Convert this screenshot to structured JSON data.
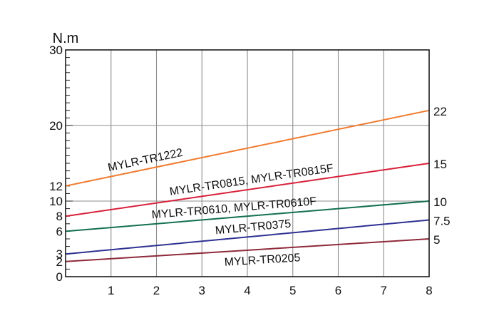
{
  "chart_data": {
    "type": "line",
    "ylabel": "N.m",
    "xlim": [
      0,
      8
    ],
    "ylim": [
      0,
      30
    ],
    "x_ticks": [
      "1",
      "2",
      "3",
      "4",
      "5",
      "6",
      "7",
      "8"
    ],
    "y_tick_labels": [
      {
        "value": 0,
        "label": "0"
      },
      {
        "value": 2,
        "label": "2"
      },
      {
        "value": 3,
        "label": "3"
      },
      {
        "value": 6,
        "label": "6"
      },
      {
        "value": 8,
        "label": "8"
      },
      {
        "value": 10,
        "label": "10"
      },
      {
        "value": 12,
        "label": "12"
      },
      {
        "value": 20,
        "label": "20"
      },
      {
        "value": 30,
        "label": "30"
      }
    ],
    "grid": true,
    "series": [
      {
        "name": "MYLR-TR1222",
        "color": "#f07a2e",
        "x": [
          0,
          8
        ],
        "y": [
          12,
          22
        ],
        "end_label": "22"
      },
      {
        "name": "MYLR-TR0815, MYLR-TR0815F",
        "color": "#d9203a",
        "x": [
          0,
          8
        ],
        "y": [
          8,
          15
        ],
        "end_label": "15"
      },
      {
        "name": "MYLR-TR0610, MYLR-TR0610F",
        "color": "#13714f",
        "x": [
          0,
          8
        ],
        "y": [
          6,
          10
        ],
        "end_label": "10"
      },
      {
        "name": "MYLR-TR0375",
        "color": "#2e3192",
        "x": [
          0,
          8
        ],
        "y": [
          3,
          7.5
        ],
        "end_label": "7.5"
      },
      {
        "name": "MYLR-TR0205",
        "color": "#8f2a3a",
        "x": [
          0,
          8
        ],
        "y": [
          2,
          5
        ],
        "end_label": "5"
      }
    ]
  }
}
